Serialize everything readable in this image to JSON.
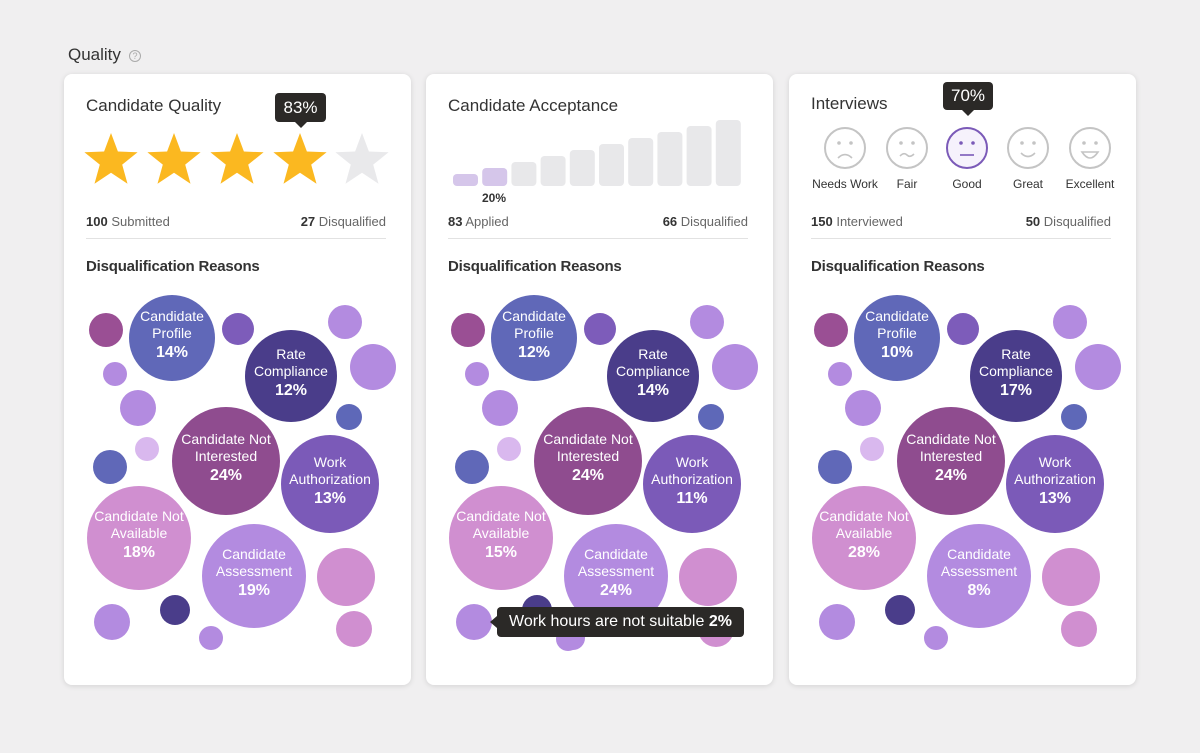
{
  "header": {
    "title": "Quality"
  },
  "cards": [
    {
      "title": "Candidate Quality",
      "tooltip": "83%",
      "stats": [
        {
          "count": 100,
          "label": "Submitted"
        },
        {
          "count": 27,
          "label": "Disqualified"
        }
      ],
      "section_title": "Disqualification Reasons",
      "reasons": [
        {
          "name": "Candidate Profile",
          "value": "14%"
        },
        {
          "name": "Rate Compliance",
          "value": "12%"
        },
        {
          "name": "Candidate Not Interested",
          "value": "24%"
        },
        {
          "name": "Work Authorization",
          "value": "13%"
        },
        {
          "name": "Candidate Not Available",
          "value": "18%"
        },
        {
          "name": "Candidate Assessment",
          "value": "19%"
        }
      ]
    },
    {
      "title": "Candidate Acceptance",
      "bar_label": "20%",
      "stats": [
        {
          "count": 83,
          "label": "Applied"
        },
        {
          "count": 66,
          "label": "Disqualified"
        }
      ],
      "section_title": "Disqualification Reasons",
      "reasons": [
        {
          "name": "Candidate Profile",
          "value": "12%"
        },
        {
          "name": "Rate Compliance",
          "value": "14%"
        },
        {
          "name": "Candidate Not Interested",
          "value": "24%"
        },
        {
          "name": "Work Authorization",
          "value": "11%"
        },
        {
          "name": "Candidate Not Available",
          "value": "15%"
        },
        {
          "name": "Candidate Assessment",
          "value": "24%"
        }
      ],
      "hover_tooltip": {
        "name": "Work hours are not suitable",
        "value": "2%"
      }
    },
    {
      "title": "Interviews",
      "tooltip": "70%",
      "ratings": [
        "Needs Work",
        "Fair",
        "Good",
        "Great",
        "Excellent"
      ],
      "stats": [
        {
          "count": 150,
          "label": "Interviewed"
        },
        {
          "count": 50,
          "label": "Disqualified"
        }
      ],
      "section_title": "Disqualification Reasons",
      "reasons": [
        {
          "name": "Candidate Profile",
          "value": "10%"
        },
        {
          "name": "Rate Compliance",
          "value": "17%"
        },
        {
          "name": "Candidate Not Interested",
          "value": "24%"
        },
        {
          "name": "Work Authorization",
          "value": "13%"
        },
        {
          "name": "Candidate Not Available",
          "value": "28%"
        },
        {
          "name": "Candidate Assessment",
          "value": "8%"
        }
      ]
    }
  ]
}
